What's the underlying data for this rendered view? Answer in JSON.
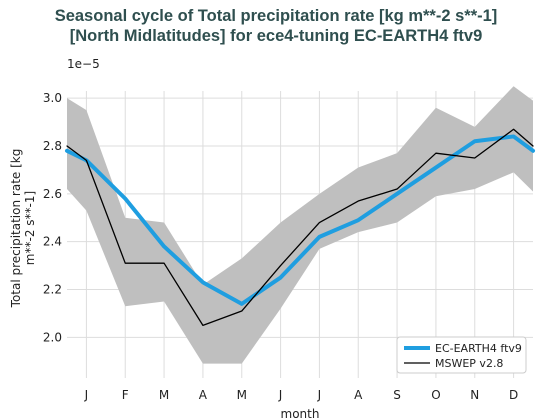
{
  "title_line1": "Seasonal cycle of Total precipitation rate [kg m**-2 s**-1]",
  "title_line2": "[North Midlatitudes] for ece4-tuning EC-EARTH4 ftv9",
  "chart_data": {
    "type": "line",
    "xlabel": "month",
    "ylabel_line1": "Total precipitation rate [kg",
    "ylabel_line2": "m**-2 s**-1]",
    "y_multiplier": "1e−5",
    "categories": [
      "J",
      "F",
      "M",
      "A",
      "M",
      "J",
      "J",
      "A",
      "S",
      "O",
      "N",
      "D"
    ],
    "x": [
      0.5,
      1,
      2,
      3,
      4,
      5,
      6,
      7,
      8,
      9,
      10,
      11,
      12,
      12.5
    ],
    "xlim": [
      0.5,
      12.5
    ],
    "ylim": [
      1.83,
      3.03
    ],
    "yticks": [
      "2.0",
      "2.2",
      "2.4",
      "2.6",
      "2.8",
      "3.0"
    ],
    "ytick_values": [
      2.0,
      2.2,
      2.4,
      2.6,
      2.8,
      3.0
    ],
    "grid": true,
    "legend_position": "bottom-right",
    "series": [
      {
        "name": "EC-EARTH4 ftv9",
        "color": "#1f9ee0",
        "values": [
          2.78,
          2.74,
          2.58,
          2.38,
          2.23,
          2.14,
          2.25,
          2.42,
          2.49,
          2.6,
          2.71,
          2.82,
          2.84,
          2.78
        ]
      },
      {
        "name": "MSWEP v2.8",
        "color": "#000000",
        "values": [
          2.8,
          2.74,
          2.31,
          2.31,
          2.05,
          2.11,
          2.3,
          2.48,
          2.57,
          2.62,
          2.77,
          2.75,
          2.87,
          2.8
        ]
      }
    ],
    "band": {
      "color": "#bfbfbf",
      "upper": [
        3.0,
        2.95,
        2.5,
        2.48,
        2.22,
        2.33,
        2.48,
        2.6,
        2.71,
        2.77,
        2.96,
        2.88,
        3.05,
        2.99
      ],
      "lower": [
        2.62,
        2.53,
        2.13,
        2.15,
        1.89,
        1.89,
        2.12,
        2.37,
        2.44,
        2.48,
        2.59,
        2.62,
        2.69,
        2.61
      ]
    }
  }
}
